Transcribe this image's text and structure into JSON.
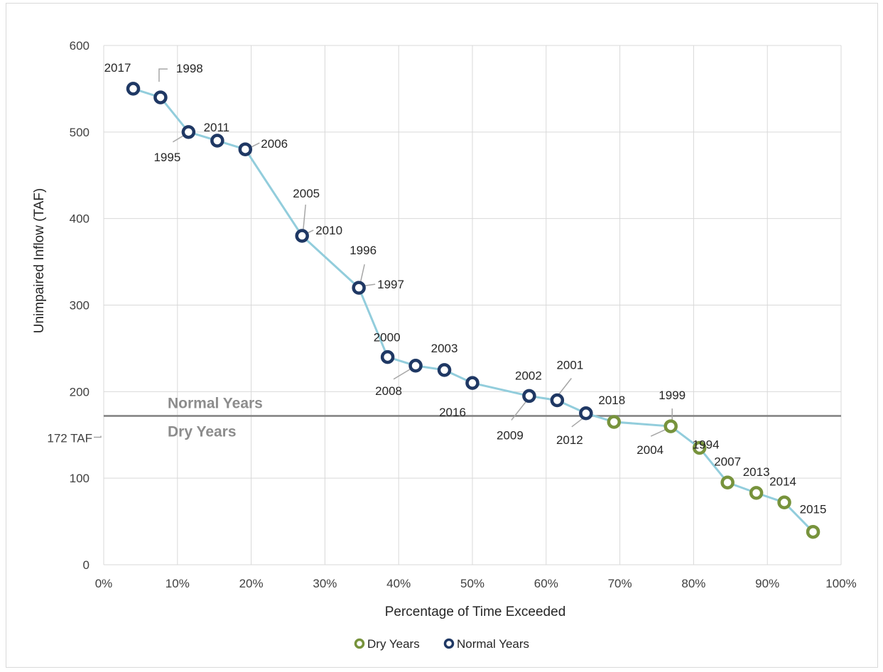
{
  "chart_data": {
    "type": "line",
    "title": "",
    "xlabel": "Percentage of Time Exceeded",
    "ylabel": "Unimpaired Inflow (TAF)",
    "xlim": [
      0,
      100
    ],
    "ylim": [
      0,
      600
    ],
    "x_ticks": [
      "0%",
      "10%",
      "20%",
      "30%",
      "40%",
      "50%",
      "60%",
      "70%",
      "80%",
      "90%",
      "100%"
    ],
    "y_ticks": [
      "0",
      "100",
      "200",
      "300",
      "400",
      "500",
      "600"
    ],
    "grid": true,
    "legend_position": "bottom",
    "line_color": "#92cddc",
    "series": [
      {
        "name": "Dry Years",
        "color": "#77933c",
        "marker": "ring"
      },
      {
        "name": "Normal Years",
        "color": "#1f3864",
        "marker": "ring"
      }
    ],
    "points": [
      {
        "year": "2017",
        "x": 4,
        "y": 550,
        "group": "Normal Years"
      },
      {
        "year": "1998",
        "x": 7.7,
        "y": 540,
        "group": "Normal Years"
      },
      {
        "year": "1995",
        "x": 11.5,
        "y": 500,
        "group": "Normal Years"
      },
      {
        "year": "2011",
        "x": 15.4,
        "y": 490,
        "group": "Normal Years"
      },
      {
        "year": "2006",
        "x": 19.2,
        "y": 480,
        "group": "Normal Years"
      },
      {
        "year": "2005",
        "x": 26.9,
        "y": 380,
        "group": "Normal Years"
      },
      {
        "year": "2010",
        "x": 26.9,
        "y": 380,
        "group": "Normal Years"
      },
      {
        "year": "1996",
        "x": 34.6,
        "y": 320,
        "group": "Normal Years"
      },
      {
        "year": "1997",
        "x": 34.6,
        "y": 320,
        "group": "Normal Years"
      },
      {
        "year": "2000",
        "x": 38.5,
        "y": 240,
        "group": "Normal Years"
      },
      {
        "year": "2008",
        "x": 42.3,
        "y": 230,
        "group": "Normal Years"
      },
      {
        "year": "2003",
        "x": 46.2,
        "y": 225,
        "group": "Normal Years"
      },
      {
        "year": "2016",
        "x": 50,
        "y": 210,
        "group": "Normal Years"
      },
      {
        "year": "2002",
        "x": 57.7,
        "y": 195,
        "group": "Normal Years"
      },
      {
        "year": "2009",
        "x": 57.7,
        "y": 195,
        "group": "Normal Years"
      },
      {
        "year": "2001",
        "x": 61.5,
        "y": 190,
        "group": "Normal Years"
      },
      {
        "year": "2012",
        "x": 65.4,
        "y": 175,
        "group": "Normal Years"
      },
      {
        "year": "2018",
        "x": 69.2,
        "y": 165,
        "group": "Dry Years"
      },
      {
        "year": "1999",
        "x": 76.9,
        "y": 160,
        "group": "Dry Years"
      },
      {
        "year": "2004",
        "x": 76.9,
        "y": 160,
        "group": "Dry Years"
      },
      {
        "year": "1994",
        "x": 80.8,
        "y": 135,
        "group": "Dry Years"
      },
      {
        "year": "2007",
        "x": 84.6,
        "y": 95,
        "group": "Dry Years"
      },
      {
        "year": "2013",
        "x": 88.5,
        "y": 83,
        "group": "Dry Years"
      },
      {
        "year": "2014",
        "x": 92.3,
        "y": 72,
        "group": "Dry Years"
      },
      {
        "year": "2015",
        "x": 96.2,
        "y": 38,
        "group": "Dry Years"
      }
    ],
    "threshold": {
      "value": 172,
      "label": "172 TAF",
      "above_label": "Normal Years",
      "below_label": "Dry Years",
      "color": "#7f7f7f"
    }
  }
}
